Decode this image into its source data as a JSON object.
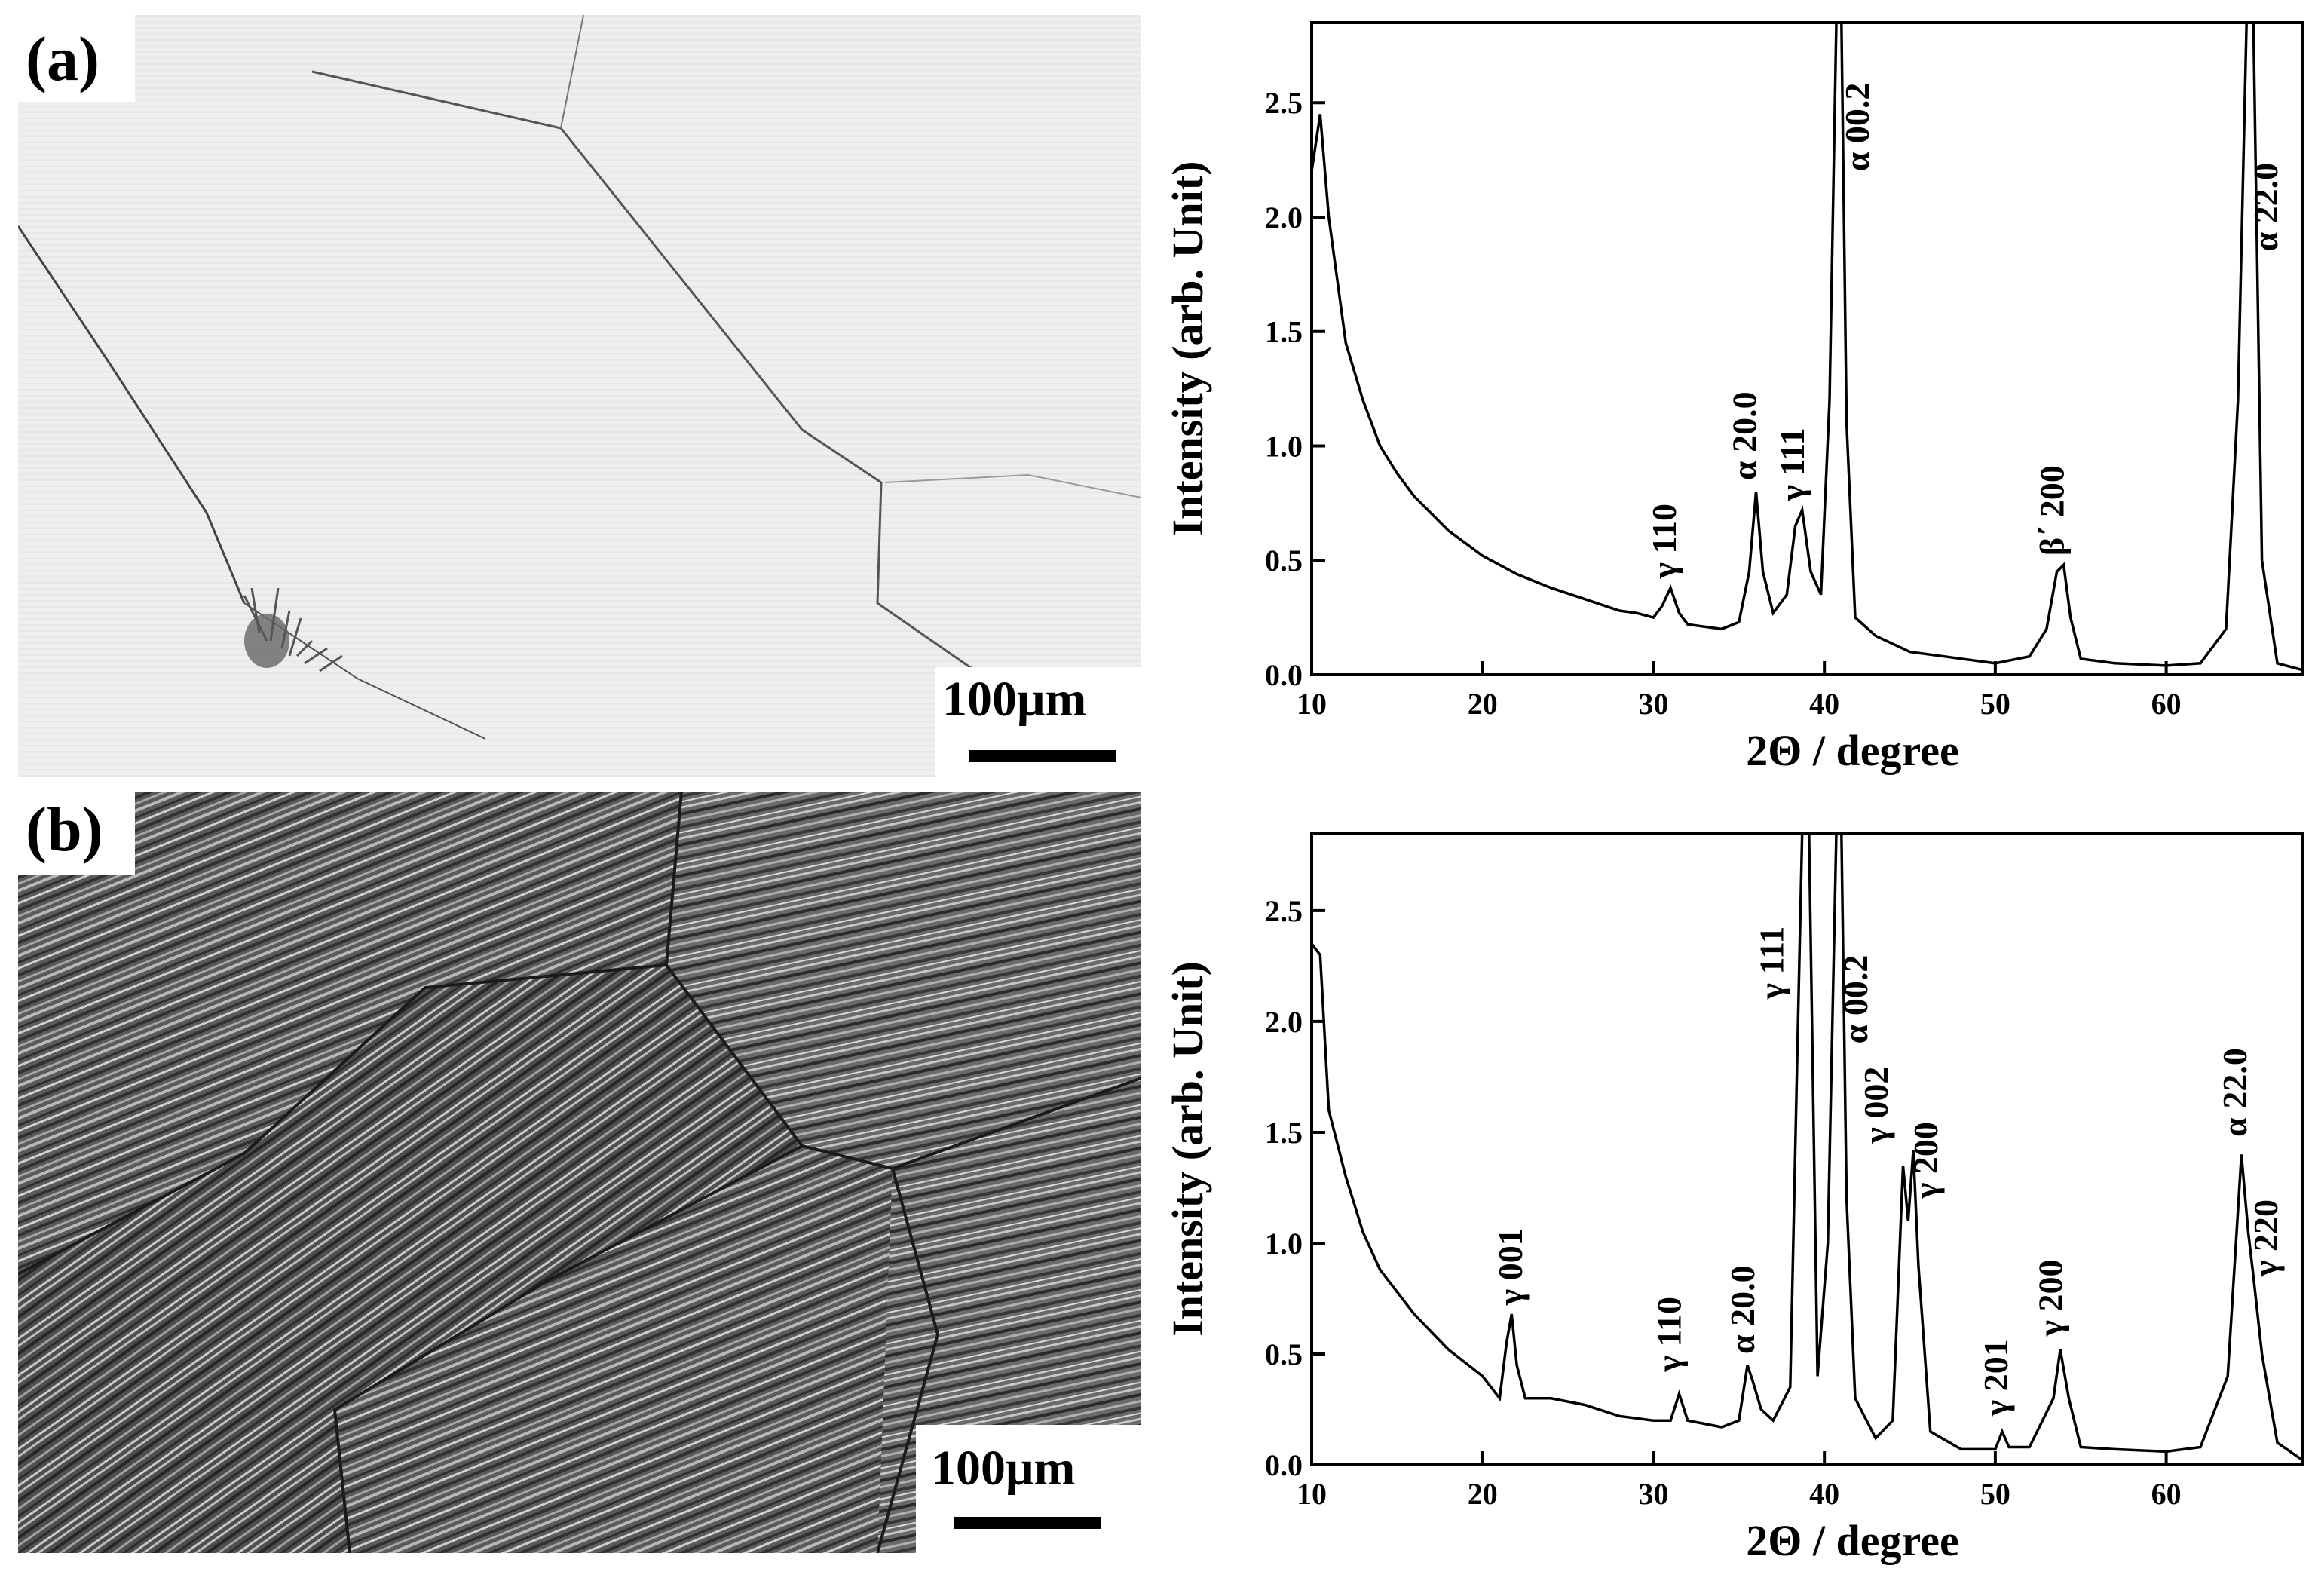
{
  "panels": {
    "a": {
      "label": "(a)",
      "scale_bar": "100μm"
    },
    "b": {
      "label": "(b)",
      "scale_bar": "100μm"
    }
  },
  "chart_data": [
    {
      "type": "line",
      "panel": "a",
      "title": "",
      "xlabel": "2Θ / degree",
      "ylabel": "Intensity (arb. Unit)",
      "xlim": [
        10,
        68
      ],
      "ylim": [
        0,
        2.85
      ],
      "xticks": [
        10,
        20,
        30,
        40,
        50,
        60
      ],
      "yticks": [
        "0.0",
        "0.5",
        "1.0",
        "1.5",
        "2.0",
        "2.5"
      ],
      "grid": false,
      "x": [
        10,
        10.5,
        11,
        12,
        13,
        14,
        15,
        16,
        18,
        20,
        22,
        24,
        26,
        28,
        29,
        30,
        30.5,
        31,
        31.5,
        32,
        34,
        35,
        35.6,
        36,
        36.4,
        37,
        37.8,
        38.3,
        38.7,
        39.2,
        39.8,
        40.3,
        40.7,
        41,
        41.3,
        41.8,
        43,
        45,
        47,
        50,
        52,
        53,
        53.6,
        54,
        54.4,
        55,
        57,
        60,
        62,
        63.5,
        64.2,
        64.7,
        65.1,
        65.6,
        66.5,
        68
      ],
      "y": [
        2.2,
        2.45,
        2.0,
        1.45,
        1.2,
        1.0,
        0.88,
        0.78,
        0.63,
        0.52,
        0.44,
        0.38,
        0.33,
        0.28,
        0.27,
        0.25,
        0.3,
        0.38,
        0.27,
        0.22,
        0.2,
        0.23,
        0.45,
        0.8,
        0.45,
        0.27,
        0.35,
        0.65,
        0.72,
        0.45,
        0.35,
        1.2,
        2.85,
        2.85,
        1.1,
        0.25,
        0.17,
        0.1,
        0.08,
        0.05,
        0.08,
        0.2,
        0.45,
        0.48,
        0.25,
        0.07,
        0.05,
        0.04,
        0.05,
        0.2,
        1.2,
        2.85,
        2.85,
        0.5,
        0.05,
        0.02
      ],
      "annotations": [
        {
          "text": "γ 110",
          "x": 31.3,
          "y": 0.42
        },
        {
          "text": "α 20.0",
          "x": 36.0,
          "y": 0.85
        },
        {
          "text": "γ 111",
          "x": 38.8,
          "y": 0.76
        },
        {
          "text": "α 00.2",
          "x": 42.6,
          "y": 2.2
        },
        {
          "text": "β΄ 200",
          "x": 54.0,
          "y": 0.52
        },
        {
          "text": "α 22.0",
          "x": 66.5,
          "y": 1.85
        }
      ]
    },
    {
      "type": "line",
      "panel": "b",
      "title": "",
      "xlabel": "2Θ / degree",
      "ylabel": "Intensity (arb. Unit)",
      "xlim": [
        10,
        68
      ],
      "ylim": [
        0,
        2.85
      ],
      "xticks": [
        10,
        20,
        30,
        40,
        50,
        60
      ],
      "yticks": [
        "0.0",
        "0.5",
        "1.0",
        "1.5",
        "2.0",
        "2.5"
      ],
      "grid": false,
      "x": [
        10,
        10.5,
        11,
        12,
        13,
        14,
        15,
        16,
        18,
        20,
        21,
        21.4,
        21.7,
        22,
        22.5,
        24,
        26,
        28,
        30,
        31,
        31.5,
        32,
        34,
        35,
        35.5,
        35.8,
        36.3,
        37,
        38,
        38.4,
        38.7,
        39.1,
        39.6,
        40.2,
        40.7,
        41,
        41.3,
        41.8,
        43,
        44,
        44.6,
        44.9,
        45.2,
        45.5,
        46.2,
        48,
        50,
        50.4,
        50.8,
        52,
        53.4,
        53.8,
        54.3,
        55,
        57,
        60,
        62,
        63.6,
        64.4,
        64.8,
        65.1,
        65.6,
        66.5,
        68
      ],
      "y": [
        2.35,
        2.3,
        1.6,
        1.3,
        1.05,
        0.88,
        0.78,
        0.68,
        0.52,
        0.4,
        0.3,
        0.55,
        0.68,
        0.45,
        0.3,
        0.3,
        0.27,
        0.22,
        0.2,
        0.2,
        0.32,
        0.2,
        0.17,
        0.2,
        0.45,
        0.38,
        0.25,
        0.2,
        0.35,
        1.8,
        2.85,
        2.85,
        0.4,
        1.0,
        2.85,
        2.85,
        1.2,
        0.3,
        0.12,
        0.2,
        1.35,
        1.1,
        1.42,
        0.9,
        0.15,
        0.07,
        0.07,
        0.15,
        0.08,
        0.08,
        0.3,
        0.52,
        0.3,
        0.08,
        0.07,
        0.06,
        0.08,
        0.4,
        1.4,
        1.05,
        0.85,
        0.5,
        0.1,
        0.02
      ],
      "annotations": [
        {
          "text": "γ 001",
          "x": 22.3,
          "y": 0.72
        },
        {
          "text": "γ 110",
          "x": 31.6,
          "y": 0.42
        },
        {
          "text": "α 20.0",
          "x": 35.9,
          "y": 0.5
        },
        {
          "text": "γ 111",
          "x": 37.6,
          "y": 2.1
        },
        {
          "text": "α 00.2",
          "x": 42.5,
          "y": 1.9
        },
        {
          "text": "γ 002",
          "x": 43.7,
          "y": 1.45
        },
        {
          "text": "γ 200",
          "x": 46.6,
          "y": 1.2
        },
        {
          "text": "γ 201",
          "x": 50.7,
          "y": 0.22
        },
        {
          "text": "γ 200",
          "x": 53.9,
          "y": 0.58
        },
        {
          "text": "α 22.0",
          "x": 64.7,
          "y": 1.48
        },
        {
          "text": "γ 220",
          "x": 66.5,
          "y": 0.85
        }
      ]
    }
  ]
}
